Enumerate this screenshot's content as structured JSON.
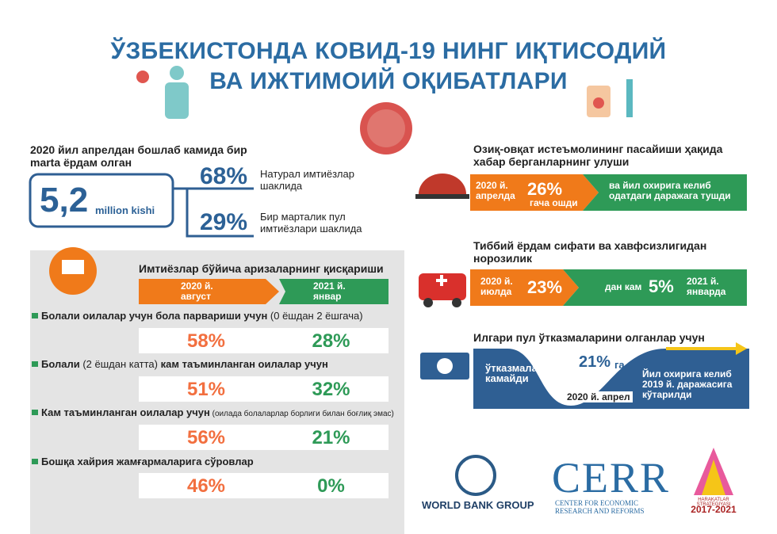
{
  "header": {
    "title_lines": [
      "ЎЗБЕКИСТОНДА КОВИД-19 НИНГ ИҚТИСОДИЙ",
      "ВА ИЖТИМОИЙ ОҚИБАТЛАРИ"
    ]
  },
  "assistance": {
    "heading": "2020 йил апрелдан бошлаб камида бир marta ёрдам олган",
    "total": {
      "value": "5,2",
      "unit": "million kishi"
    },
    "items": [
      {
        "value": "68%",
        "label": "Натурал имтиёзлар шаклида"
      },
      {
        "value": "29%",
        "label": "Бир марталик пул имтиёзлари шаклида"
      }
    ]
  },
  "applications": {
    "title": "Имтиёзлар бўйича аризаларнинг қисқариши",
    "periods": [
      "2020 й. август",
      "2021 й. январ"
    ],
    "rows": [
      {
        "label": [
          {
            "text": "Болали оилалар учун бола парвариши учун",
            "style": "bold"
          },
          {
            "text": " (0 ёшдан 2 ёшгача)",
            "style": "normal"
          }
        ],
        "values": [
          "58%",
          "28%"
        ]
      },
      {
        "label": [
          {
            "text": "Болали",
            "style": "bold"
          },
          {
            "text": " (2 ёшдан катта) ",
            "style": "normal"
          },
          {
            "text": "кам таъминланган оилалар учун",
            "style": "bold"
          }
        ],
        "values": [
          "51%",
          "32%"
        ]
      },
      {
        "label": [
          {
            "text": "Кам таъминланган оилалар учун",
            "style": "bold"
          },
          {
            "text": " (оилада болаларлар борлиги билан боғлиқ эмас)",
            "style": "small"
          }
        ],
        "values": [
          "56%",
          "21%"
        ]
      },
      {
        "label": [
          {
            "text": "Бошқа хайрия жамғармаларига сўровлар",
            "style": "bold"
          }
        ],
        "values": [
          "46%",
          "0%"
        ]
      }
    ]
  },
  "food": {
    "title": "Озиқ-овқат истеъмолининг пасайиши ҳақида хабар берганларнинг улуши",
    "start": "2020 й. апрелда",
    "value": "26%",
    "change": "гача ошди",
    "end": "ва йил охирига келиб одатдаги даражага тушди"
  },
  "health": {
    "title": "Тиббий ёрдам сифати ва хавфсизлигидан норозилик",
    "start": "2020 й. июлда",
    "value": "23%",
    "change": "дан кам",
    "end_value": "5%",
    "end": "2021 й. январда"
  },
  "remittances": {
    "title": "Илгари пул ўтказмаларини олганлар учун",
    "start": "ўтказмалар камайди",
    "value": "21%",
    "suffix": "га",
    "date": "2020 й. апрел",
    "end": "Йил охирига келиб 2019 й. даражасига кўтарилди"
  },
  "logos": {
    "world_bank": "WORLD BANK GROUP",
    "cerr": "CERR",
    "cerr_sub": "CENTER FOR ECONOMIC RESEARCH AND REFORMS",
    "strategy": "HARAKATLAR STRATEGIYASI",
    "years": "2017-2021"
  }
}
